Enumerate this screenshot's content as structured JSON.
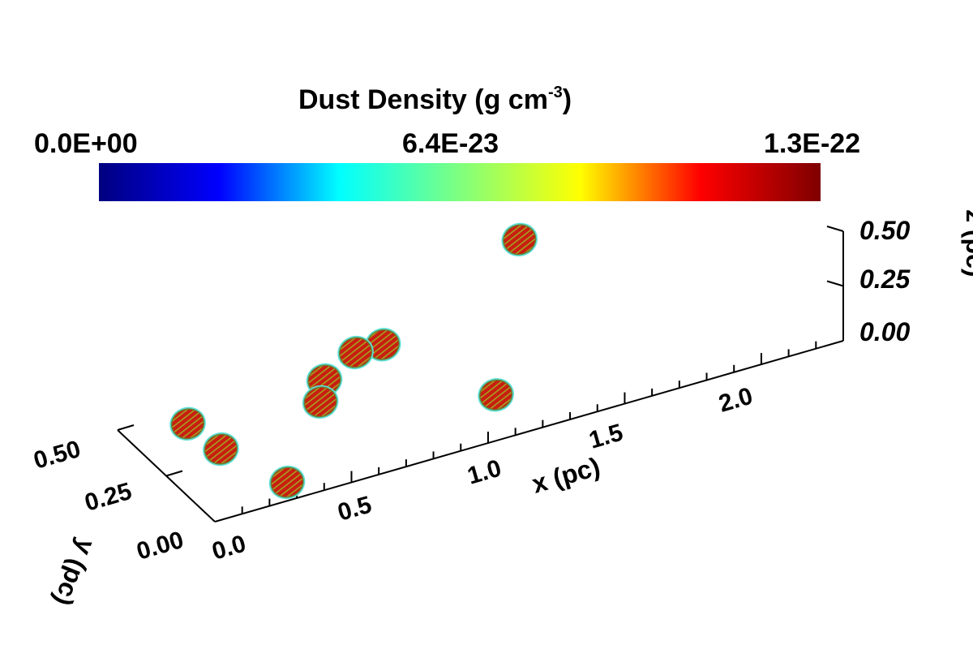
{
  "chart_data": {
    "type": "scatter",
    "dimensions": "3d",
    "colorbar": {
      "title": "Dust Density (g cm",
      "title_exponent": "-3",
      "title_close": ")",
      "min_label": "0.0E+00",
      "mid_label": "6.4E-23",
      "max_label": "1.3E-22",
      "colormap": "jet",
      "colors": [
        "#00007f",
        "#0000ff",
        "#00ffff",
        "#7fff7f",
        "#ffff00",
        "#ff0000",
        "#7f0000"
      ]
    },
    "axes": {
      "x": {
        "label": "x (pc)",
        "ticks": [
          "0.0",
          "0.5",
          "1.0",
          "1.5",
          "2.0"
        ],
        "range": [
          0,
          2.3
        ]
      },
      "y": {
        "label": "y (pc)",
        "ticks": [
          "0.00",
          "0.25",
          "0.50"
        ],
        "range": [
          0,
          0.5
        ]
      },
      "z": {
        "label": "z (pc)",
        "ticks": [
          "0.00",
          "0.25",
          "0.50"
        ],
        "range": [
          0,
          0.5
        ]
      }
    },
    "clumps": [
      {
        "x": 0.15,
        "y": 0.35,
        "z": 0.1
      },
      {
        "x": 0.2,
        "y": 0.25,
        "z": 0.05
      },
      {
        "x": 0.3,
        "y": 0.05,
        "z": 0.03
      },
      {
        "x": 0.6,
        "y": 0.3,
        "z": 0.08
      },
      {
        "x": 0.65,
        "y": 0.35,
        "z": 0.12
      },
      {
        "x": 0.8,
        "y": 0.4,
        "z": 0.15
      },
      {
        "x": 0.9,
        "y": 0.4,
        "z": 0.15
      },
      {
        "x": 1.1,
        "y": 0.1,
        "z": 0.1
      },
      {
        "x": 1.4,
        "y": 0.4,
        "z": 0.45
      }
    ],
    "clump_colors": {
      "outer": "#5ee0d8",
      "inner": "#c81e10",
      "mottle": "#a5a020"
    }
  }
}
